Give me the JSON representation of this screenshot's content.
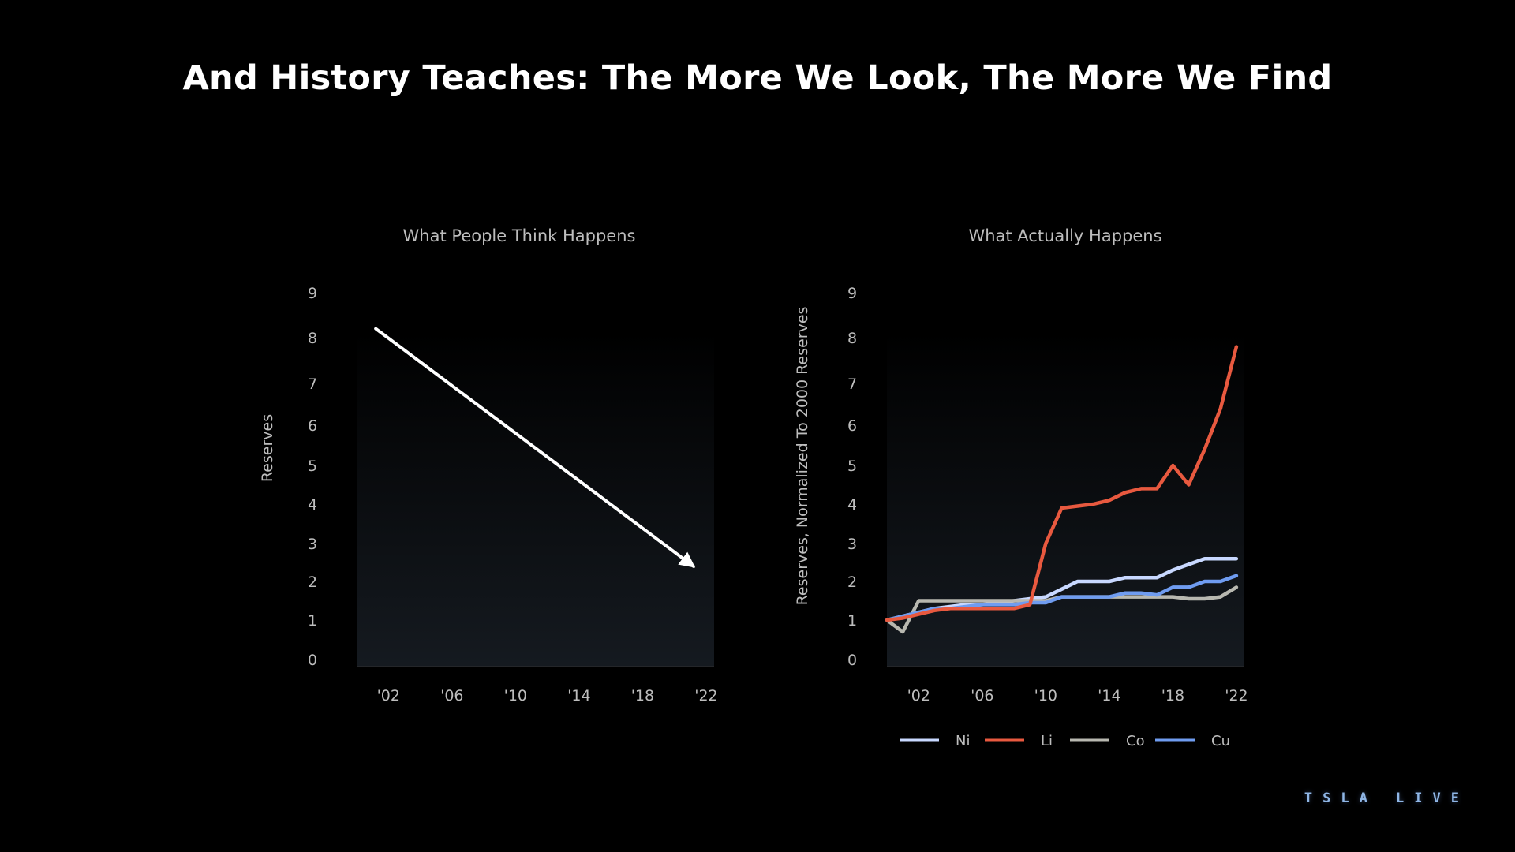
{
  "slide": {
    "title": "And History Teaches: The More We Look, The More We Find",
    "brand_logo": "TSLA LIVE"
  },
  "chart_data": [
    {
      "type": "line",
      "title": "What People Think Happens",
      "ylabel": "Reserves",
      "xlabel": "",
      "x_ticks": [
        "'02",
        "'06",
        "'10",
        "'14",
        "'18",
        "'22"
      ],
      "y_ticks": [
        0,
        1,
        2,
        3,
        4,
        5,
        6,
        7,
        8,
        9
      ],
      "xlim": [
        2000,
        2022.5
      ],
      "ylim": [
        0,
        9
      ],
      "grid": false,
      "legend": "none",
      "series": [
        {
          "name": "",
          "color": "#ffffff",
          "arrow": true,
          "x": [
            2001.2,
            2021.2
          ],
          "y": [
            8.2,
            2.4
          ]
        }
      ]
    },
    {
      "type": "line",
      "title": "What Actually Happens",
      "ylabel": "Reserves, Normalized To 2000 Reserves",
      "xlabel": "",
      "x_ticks": [
        "'02",
        "'06",
        "'10",
        "'14",
        "'18",
        "'22"
      ],
      "y_ticks": [
        0,
        1,
        2,
        3,
        4,
        5,
        6,
        7,
        8,
        9
      ],
      "xlim": [
        2000,
        2022.5
      ],
      "ylim": [
        0,
        9
      ],
      "grid": false,
      "legend": "bottom",
      "series": [
        {
          "name": "Ni",
          "color": "#c8d8ff",
          "x": [
            2000,
            2001,
            2002,
            2003,
            2004,
            2005,
            2006,
            2007,
            2008,
            2009,
            2010,
            2011,
            2012,
            2013,
            2014,
            2015,
            2016,
            2017,
            2018,
            2019,
            2020,
            2021,
            2022
          ],
          "y": [
            1.0,
            1.1,
            1.2,
            1.3,
            1.35,
            1.4,
            1.4,
            1.45,
            1.5,
            1.55,
            1.6,
            1.8,
            2.0,
            2.0,
            2.0,
            2.1,
            2.1,
            2.1,
            2.3,
            2.45,
            2.6,
            2.6,
            2.6
          ]
        },
        {
          "name": "Li",
          "color": "#e8593f",
          "x": [
            2000,
            2001,
            2002,
            2003,
            2004,
            2005,
            2006,
            2007,
            2008,
            2009,
            2010,
            2011,
            2012,
            2013,
            2014,
            2015,
            2016,
            2017,
            2018,
            2019,
            2020,
            2021,
            2022
          ],
          "y": [
            1.0,
            1.05,
            1.15,
            1.25,
            1.3,
            1.3,
            1.3,
            1.3,
            1.3,
            1.4,
            3.0,
            3.9,
            3.95,
            4.0,
            4.1,
            4.3,
            4.4,
            4.4,
            5.0,
            4.5,
            5.4,
            6.4,
            7.8
          ]
        },
        {
          "name": "Co",
          "color": "#b8b8b0",
          "x": [
            2000,
            2001,
            2002,
            2003,
            2004,
            2005,
            2006,
            2007,
            2008,
            2009,
            2010,
            2011,
            2012,
            2013,
            2014,
            2015,
            2016,
            2017,
            2018,
            2019,
            2020,
            2021,
            2022
          ],
          "y": [
            1.0,
            0.7,
            1.5,
            1.5,
            1.5,
            1.5,
            1.5,
            1.5,
            1.5,
            1.5,
            1.5,
            1.6,
            1.6,
            1.6,
            1.6,
            1.6,
            1.6,
            1.6,
            1.6,
            1.55,
            1.55,
            1.6,
            1.85
          ]
        },
        {
          "name": "Cu",
          "color": "#6f9cf0",
          "x": [
            2000,
            2001,
            2002,
            2003,
            2004,
            2005,
            2006,
            2007,
            2008,
            2009,
            2010,
            2011,
            2012,
            2013,
            2014,
            2015,
            2016,
            2017,
            2018,
            2019,
            2020,
            2021,
            2022
          ],
          "y": [
            1.0,
            1.1,
            1.2,
            1.3,
            1.3,
            1.35,
            1.4,
            1.4,
            1.4,
            1.45,
            1.45,
            1.6,
            1.6,
            1.6,
            1.6,
            1.7,
            1.7,
            1.65,
            1.85,
            1.85,
            2.0,
            2.0,
            2.15
          ]
        }
      ]
    }
  ]
}
